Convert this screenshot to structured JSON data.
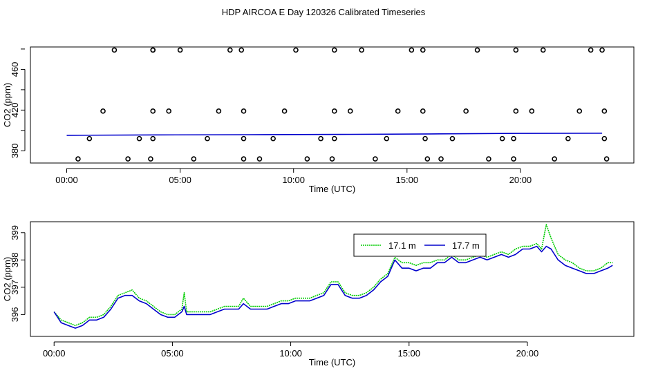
{
  "figure_title": "HDP AIRCOA E  Day 120326  Calibrated Timeseries",
  "colors": {
    "green": "#00cc00",
    "blue": "#0000cc",
    "points": "#000000"
  },
  "chart_data": [
    {
      "type": "scatter",
      "title": "",
      "xlabel": "Time (UTC)",
      "ylabel": "CO2 (ppm)",
      "xlim": [
        -1.6,
        25.0
      ],
      "ylim": [
        368,
        482
      ],
      "x_ticks": [
        0,
        5,
        10,
        15,
        20
      ],
      "x_tick_labels": [
        "00:00",
        "05:00",
        "10:00",
        "15:00",
        "20:00"
      ],
      "y_ticks": [
        380,
        420,
        460
      ],
      "y_tick_labels": [
        "380",
        "420",
        "460"
      ],
      "grid": false,
      "series": [
        {
          "name": "",
          "style": "open-circles",
          "points": [
            [
              2.1,
              479
            ],
            [
              3.8,
              479
            ],
            [
              5.0,
              479
            ],
            [
              7.2,
              479
            ],
            [
              7.7,
              479
            ],
            [
              10.1,
              479
            ],
            [
              11.8,
              479
            ],
            [
              13.0,
              479
            ],
            [
              15.2,
              479
            ],
            [
              15.7,
              479
            ],
            [
              18.1,
              479
            ],
            [
              19.8,
              479
            ],
            [
              21.0,
              479
            ],
            [
              23.1,
              479
            ],
            [
              23.6,
              479
            ],
            [
              3.8,
              479
            ],
            [
              1.6,
              419
            ],
            [
              3.8,
              419
            ],
            [
              4.5,
              419
            ],
            [
              6.7,
              419
            ],
            [
              7.8,
              419
            ],
            [
              9.6,
              419
            ],
            [
              11.8,
              419
            ],
            [
              12.5,
              419
            ],
            [
              14.6,
              419
            ],
            [
              15.7,
              419
            ],
            [
              17.6,
              419
            ],
            [
              19.8,
              419
            ],
            [
              20.5,
              419
            ],
            [
              22.6,
              419
            ],
            [
              23.7,
              419
            ],
            [
              1.0,
              392
            ],
            [
              3.2,
              392
            ],
            [
              3.8,
              392
            ],
            [
              6.2,
              392
            ],
            [
              7.8,
              392
            ],
            [
              9.1,
              392
            ],
            [
              11.2,
              392
            ],
            [
              11.8,
              392
            ],
            [
              14.1,
              392
            ],
            [
              15.8,
              392
            ],
            [
              17.0,
              392
            ],
            [
              19.2,
              392
            ],
            [
              19.7,
              392
            ],
            [
              22.1,
              392
            ],
            [
              23.7,
              392
            ],
            [
              0.5,
              372
            ],
            [
              2.7,
              372
            ],
            [
              3.7,
              372
            ],
            [
              5.6,
              372
            ],
            [
              7.8,
              372
            ],
            [
              8.5,
              372
            ],
            [
              10.6,
              372
            ],
            [
              11.7,
              372
            ],
            [
              13.6,
              372
            ],
            [
              15.9,
              372
            ],
            [
              16.5,
              372
            ],
            [
              18.6,
              372
            ],
            [
              19.7,
              372
            ],
            [
              21.5,
              372
            ],
            [
              23.8,
              372
            ]
          ]
        },
        {
          "name": "",
          "style": "line",
          "color": "#0000cc",
          "points": [
            [
              0,
              395.2
            ],
            [
              4,
              395.6
            ],
            [
              8,
              395.8
            ],
            [
              12,
              396.1
            ],
            [
              16,
              396.6
            ],
            [
              20,
              397.1
            ],
            [
              23.6,
              397.3
            ]
          ]
        }
      ]
    },
    {
      "type": "line",
      "title": "",
      "xlabel": "Time (UTC)",
      "ylabel": "CO2 (ppm)",
      "xlim": [
        -1.0,
        24.5
      ],
      "ylim": [
        395.2,
        399.4
      ],
      "x_ticks": [
        0,
        5,
        10,
        15,
        20
      ],
      "x_tick_labels": [
        "00:00",
        "05:00",
        "10:00",
        "15:00",
        "20:00"
      ],
      "y_ticks": [
        396,
        397,
        398,
        399
      ],
      "y_tick_labels": [
        "396",
        "397",
        "398",
        "399"
      ],
      "grid": false,
      "legend": {
        "position": "top-right"
      },
      "series": [
        {
          "name": "17.1 m",
          "color": "#00cc00",
          "style": "dotted",
          "points": [
            [
              0,
              396.1
            ],
            [
              0.3,
              395.8
            ],
            [
              0.6,
              395.7
            ],
            [
              0.9,
              395.6
            ],
            [
              1.2,
              395.7
            ],
            [
              1.5,
              395.9
            ],
            [
              1.8,
              395.9
            ],
            [
              2.1,
              396.0
            ],
            [
              2.4,
              396.3
            ],
            [
              2.7,
              396.7
            ],
            [
              3.0,
              396.8
            ],
            [
              3.3,
              396.9
            ],
            [
              3.6,
              396.6
            ],
            [
              3.9,
              396.5
            ],
            [
              4.2,
              396.3
            ],
            [
              4.5,
              396.1
            ],
            [
              4.8,
              396.0
            ],
            [
              5.1,
              396.0
            ],
            [
              5.4,
              396.2
            ],
            [
              5.5,
              396.8
            ],
            [
              5.6,
              396.1
            ],
            [
              6.0,
              396.1
            ],
            [
              6.3,
              396.1
            ],
            [
              6.6,
              396.1
            ],
            [
              6.9,
              396.2
            ],
            [
              7.2,
              396.3
            ],
            [
              7.5,
              396.3
            ],
            [
              7.8,
              396.3
            ],
            [
              8.0,
              396.6
            ],
            [
              8.3,
              396.3
            ],
            [
              8.7,
              396.3
            ],
            [
              9.0,
              396.3
            ],
            [
              9.3,
              396.4
            ],
            [
              9.6,
              396.5
            ],
            [
              9.9,
              396.5
            ],
            [
              10.2,
              396.6
            ],
            [
              10.5,
              396.6
            ],
            [
              10.8,
              396.6
            ],
            [
              11.1,
              396.7
            ],
            [
              11.4,
              396.8
            ],
            [
              11.7,
              397.2
            ],
            [
              12.0,
              397.2
            ],
            [
              12.3,
              396.8
            ],
            [
              12.6,
              396.7
            ],
            [
              12.9,
              396.7
            ],
            [
              13.2,
              396.8
            ],
            [
              13.5,
              397.0
            ],
            [
              13.8,
              397.3
            ],
            [
              14.1,
              397.5
            ],
            [
              14.4,
              398.1
            ],
            [
              14.7,
              397.9
            ],
            [
              15.0,
              397.9
            ],
            [
              15.3,
              397.8
            ],
            [
              15.6,
              397.9
            ],
            [
              15.9,
              397.9
            ],
            [
              16.2,
              398.0
            ],
            [
              16.5,
              398.0
            ],
            [
              16.8,
              398.2
            ],
            [
              17.1,
              398.0
            ],
            [
              17.4,
              398.0
            ],
            [
              17.7,
              398.1
            ],
            [
              18.0,
              398.2
            ],
            [
              18.3,
              398.1
            ],
            [
              18.6,
              398.2
            ],
            [
              18.9,
              398.3
            ],
            [
              19.2,
              398.2
            ],
            [
              19.5,
              398.4
            ],
            [
              19.8,
              398.5
            ],
            [
              20.1,
              398.5
            ],
            [
              20.4,
              398.6
            ],
            [
              20.6,
              398.4
            ],
            [
              20.8,
              399.3
            ],
            [
              21.0,
              398.8
            ],
            [
              21.3,
              398.2
            ],
            [
              21.6,
              398.0
            ],
            [
              21.9,
              397.9
            ],
            [
              22.2,
              397.7
            ],
            [
              22.5,
              397.6
            ],
            [
              22.8,
              397.6
            ],
            [
              23.1,
              397.7
            ],
            [
              23.4,
              397.9
            ],
            [
              23.6,
              397.9
            ]
          ]
        },
        {
          "name": "17.7 m",
          "color": "#0000cc",
          "style": "solid",
          "points": [
            [
              0,
              396.1
            ],
            [
              0.3,
              395.7
            ],
            [
              0.6,
              395.6
            ],
            [
              0.9,
              395.5
            ],
            [
              1.2,
              395.6
            ],
            [
              1.5,
              395.8
            ],
            [
              1.8,
              395.8
            ],
            [
              2.1,
              395.9
            ],
            [
              2.4,
              396.2
            ],
            [
              2.7,
              396.6
            ],
            [
              3.0,
              396.7
            ],
            [
              3.3,
              396.7
            ],
            [
              3.6,
              396.5
            ],
            [
              3.9,
              396.4
            ],
            [
              4.2,
              396.2
            ],
            [
              4.5,
              396.0
            ],
            [
              4.8,
              395.9
            ],
            [
              5.1,
              395.9
            ],
            [
              5.4,
              396.1
            ],
            [
              5.5,
              396.3
            ],
            [
              5.6,
              396.0
            ],
            [
              6.0,
              396.0
            ],
            [
              6.3,
              396.0
            ],
            [
              6.6,
              396.0
            ],
            [
              6.9,
              396.1
            ],
            [
              7.2,
              396.2
            ],
            [
              7.5,
              396.2
            ],
            [
              7.8,
              396.2
            ],
            [
              8.0,
              396.4
            ],
            [
              8.3,
              396.2
            ],
            [
              8.7,
              396.2
            ],
            [
              9.0,
              396.2
            ],
            [
              9.3,
              396.3
            ],
            [
              9.6,
              396.4
            ],
            [
              9.9,
              396.4
            ],
            [
              10.2,
              396.5
            ],
            [
              10.5,
              396.5
            ],
            [
              10.8,
              396.5
            ],
            [
              11.1,
              396.6
            ],
            [
              11.4,
              396.7
            ],
            [
              11.7,
              397.1
            ],
            [
              12.0,
              397.1
            ],
            [
              12.3,
              396.7
            ],
            [
              12.6,
              396.6
            ],
            [
              12.9,
              396.6
            ],
            [
              13.2,
              396.7
            ],
            [
              13.5,
              396.9
            ],
            [
              13.8,
              397.2
            ],
            [
              14.1,
              397.4
            ],
            [
              14.4,
              398.0
            ],
            [
              14.7,
              397.7
            ],
            [
              15.0,
              397.7
            ],
            [
              15.3,
              397.6
            ],
            [
              15.6,
              397.7
            ],
            [
              15.9,
              397.7
            ],
            [
              16.2,
              397.9
            ],
            [
              16.5,
              397.9
            ],
            [
              16.8,
              398.1
            ],
            [
              17.1,
              397.9
            ],
            [
              17.4,
              397.9
            ],
            [
              17.7,
              398.0
            ],
            [
              18.0,
              398.1
            ],
            [
              18.3,
              398.0
            ],
            [
              18.6,
              398.1
            ],
            [
              18.9,
              398.2
            ],
            [
              19.2,
              398.1
            ],
            [
              19.5,
              398.2
            ],
            [
              19.8,
              398.4
            ],
            [
              20.1,
              398.4
            ],
            [
              20.4,
              398.5
            ],
            [
              20.6,
              398.3
            ],
            [
              20.8,
              398.5
            ],
            [
              21.0,
              398.4
            ],
            [
              21.3,
              398.0
            ],
            [
              21.6,
              397.8
            ],
            [
              21.9,
              397.7
            ],
            [
              22.2,
              397.6
            ],
            [
              22.5,
              397.5
            ],
            [
              22.8,
              397.5
            ],
            [
              23.1,
              397.6
            ],
            [
              23.4,
              397.7
            ],
            [
              23.6,
              397.8
            ]
          ]
        }
      ]
    }
  ]
}
